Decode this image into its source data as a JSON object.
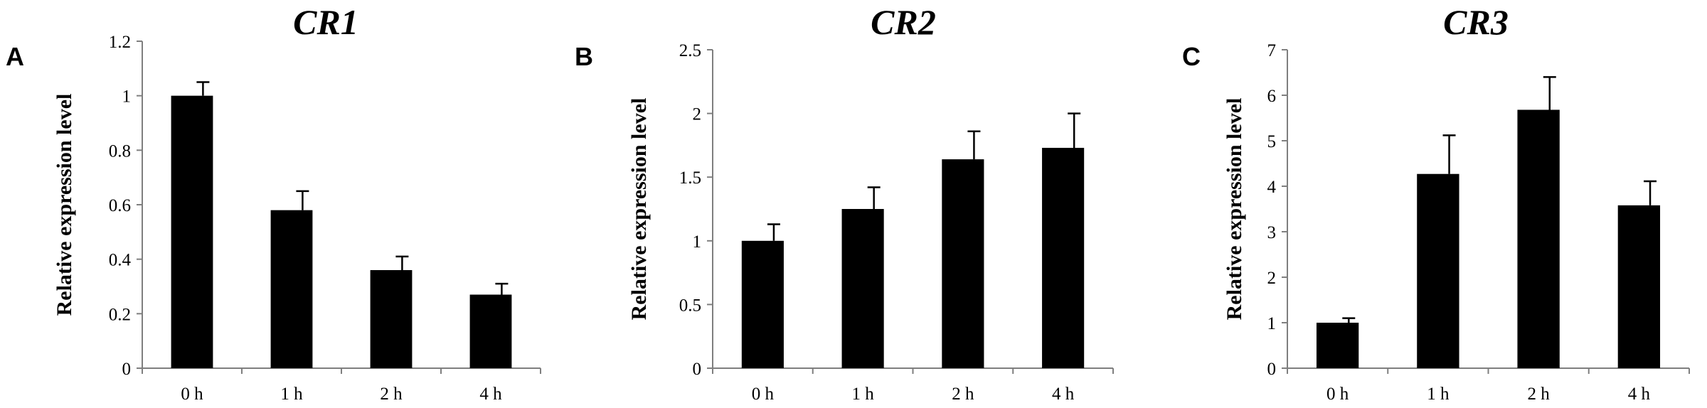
{
  "chart_data": [
    {
      "type": "bar",
      "panel": "A",
      "title": "CR1",
      "xlabel": "",
      "ylabel": "Relative expression level",
      "categories": [
        "0 h",
        "1 h",
        "2 h",
        "4 h"
      ],
      "values": [
        1.0,
        0.58,
        0.36,
        0.27
      ],
      "errors": [
        0.05,
        0.07,
        0.05,
        0.04
      ],
      "ylim": [
        0,
        1.2
      ],
      "yticks": [
        0,
        0.2,
        0.4,
        0.6,
        0.8,
        1,
        1.2
      ],
      "ytick_labels": [
        "0",
        "0.2",
        "0.4",
        "0.6",
        "0.8",
        "1",
        "1.2"
      ],
      "grid": false,
      "bar_color": "#000000"
    },
    {
      "type": "bar",
      "panel": "B",
      "title": "CR2",
      "xlabel": "",
      "ylabel": "Relative expression level",
      "categories": [
        "0 h",
        "1 h",
        "2 h",
        "4 h"
      ],
      "values": [
        1.0,
        1.25,
        1.64,
        1.73
      ],
      "errors": [
        0.13,
        0.17,
        0.22,
        0.27
      ],
      "ylim": [
        0,
        2.5
      ],
      "yticks": [
        0,
        0.5,
        1,
        1.5,
        2,
        2.5
      ],
      "ytick_labels": [
        "0",
        "0.5",
        "1",
        "1.5",
        "2",
        "2.5"
      ],
      "grid": false,
      "bar_color": "#000000"
    },
    {
      "type": "bar",
      "panel": "C",
      "title": "CR3",
      "xlabel": "",
      "ylabel": "Relative expression level",
      "categories": [
        "0 h",
        "1 h",
        "2 h",
        "4 h"
      ],
      "values": [
        1.0,
        4.27,
        5.68,
        3.58
      ],
      "errors": [
        0.1,
        0.85,
        0.72,
        0.53
      ],
      "ylim": [
        0,
        7
      ],
      "yticks": [
        0,
        1,
        2,
        3,
        4,
        5,
        6,
        7
      ],
      "ytick_labels": [
        "0",
        "1",
        "2",
        "3",
        "4",
        "5",
        "6",
        "7"
      ],
      "grid": false,
      "bar_color": "#000000"
    }
  ]
}
